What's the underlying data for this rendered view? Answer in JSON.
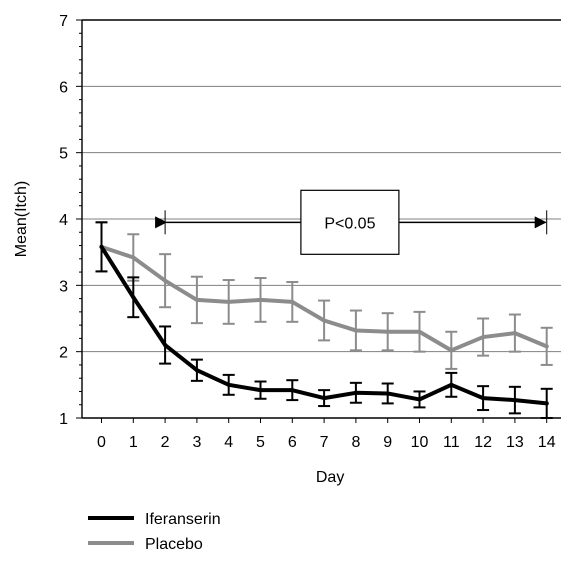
{
  "chart_data": {
    "type": "line",
    "title": "",
    "xlabel": "Day",
    "ylabel": "Mean(Itch)",
    "x": [
      0,
      1,
      2,
      3,
      4,
      5,
      6,
      7,
      8,
      9,
      10,
      11,
      12,
      13,
      14
    ],
    "xlim": [
      -0.5,
      14.5
    ],
    "ylim": [
      1,
      7
    ],
    "yticks": [
      1,
      2,
      3,
      4,
      5,
      6,
      7
    ],
    "grid": "horizontal",
    "legend_position": "bottom-left",
    "series": [
      {
        "name": "Placebo",
        "color": "#8c8c8c",
        "values": [
          3.58,
          3.42,
          3.07,
          2.78,
          2.75,
          2.78,
          2.75,
          2.47,
          2.32,
          2.3,
          2.3,
          2.02,
          2.22,
          2.28,
          2.08
        ],
        "error": [
          0.37,
          0.35,
          0.4,
          0.35,
          0.33,
          0.33,
          0.3,
          0.3,
          0.3,
          0.28,
          0.3,
          0.28,
          0.28,
          0.28,
          0.28
        ]
      },
      {
        "name": "Iferanserin",
        "color": "#000000",
        "values": [
          3.58,
          2.82,
          2.1,
          1.72,
          1.5,
          1.42,
          1.42,
          1.3,
          1.38,
          1.37,
          1.28,
          1.5,
          1.3,
          1.27,
          1.22
        ],
        "error": [
          0.37,
          0.3,
          0.28,
          0.16,
          0.15,
          0.13,
          0.15,
          0.12,
          0.15,
          0.15,
          0.12,
          0.18,
          0.18,
          0.2,
          0.22
        ]
      }
    ],
    "annotations": [
      {
        "text": "P<0.05",
        "x_start": 2,
        "x_end": 14,
        "y": 3.95
      }
    ]
  }
}
